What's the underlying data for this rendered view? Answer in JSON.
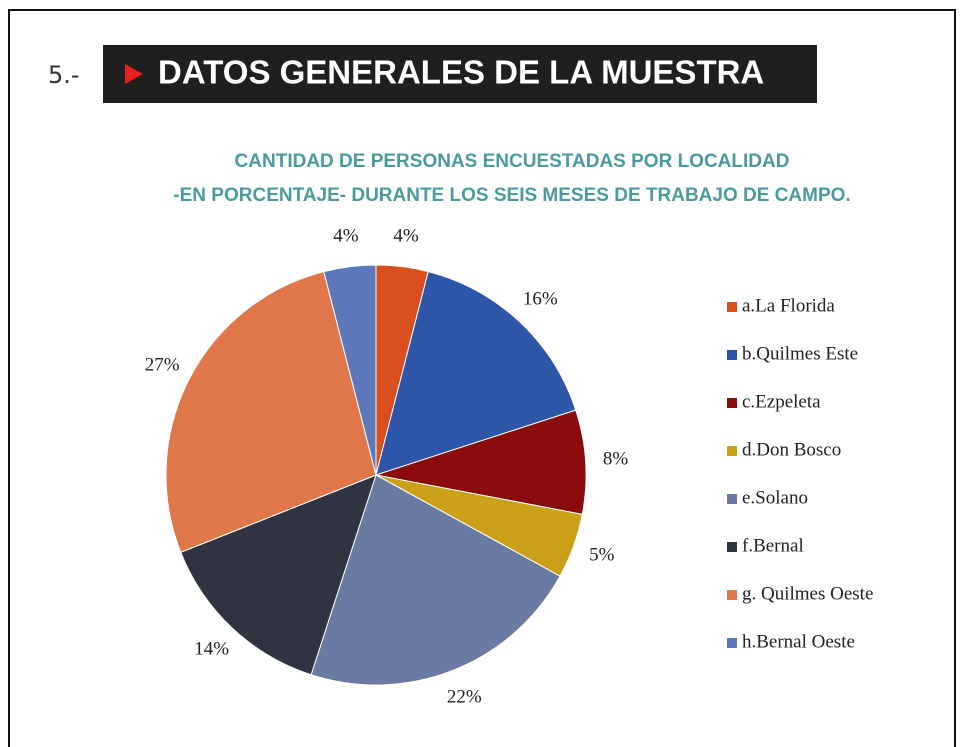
{
  "header": {
    "number": "5.-",
    "title": "DATOS GENERALES DE LA MUESTRA"
  },
  "chart_data": {
    "type": "pie",
    "title": "CANTIDAD DE PERSONAS ENCUESTADAS POR LOCALIDAD",
    "subtitle": "-EN PORCENTAJE- DURANTE LOS SEIS MESES DE TRABAJO DE CAMPO.",
    "categories": [
      "a.La Florida",
      "b.Quilmes Este",
      "c.Ezpeleta",
      "d.Don Bosco",
      "e.Solano",
      "f.Bernal",
      "g. Quilmes Oeste",
      "h.Bernal Oeste"
    ],
    "values": [
      4,
      16,
      8,
      5,
      22,
      14,
      27,
      4
    ],
    "value_labels": [
      "4%",
      "16%",
      "8%",
      "5%",
      "22%",
      "14%",
      "27%",
      "4%"
    ],
    "colors": [
      "#d9501e",
      "#2d55a8",
      "#8b0c0c",
      "#c9a016",
      "#6b7aa0",
      "#2f3440",
      "#e0774a",
      "#5c78b8"
    ],
    "legend": "right"
  }
}
